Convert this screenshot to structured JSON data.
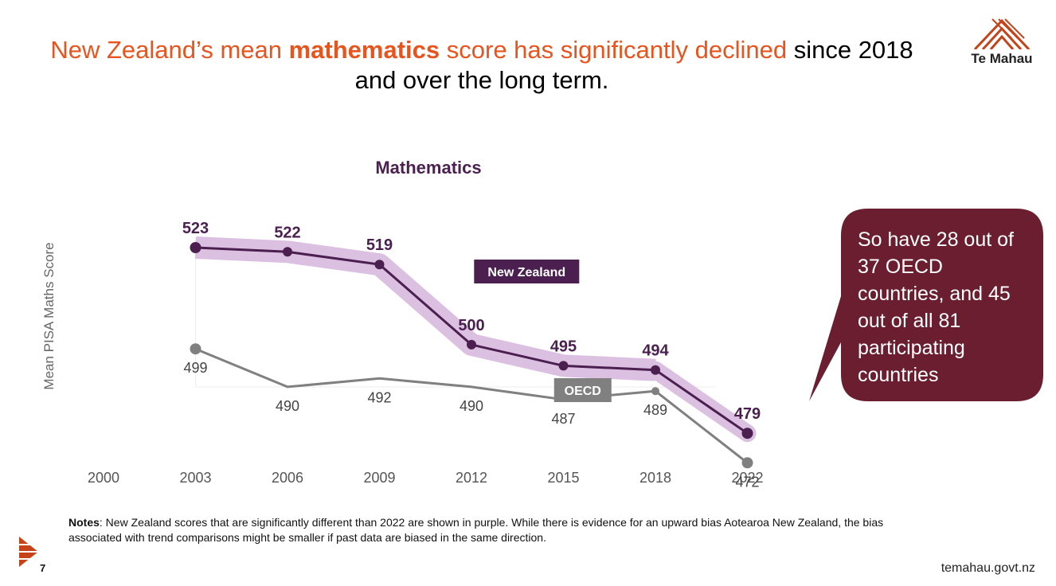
{
  "slide": {
    "title_parts": [
      {
        "text": "New Zealand’s mean ",
        "style": "accent"
      },
      {
        "text": "mathematics",
        "style": "accent-bold"
      },
      {
        "text": " score has significantly declined",
        "style": "accent"
      },
      {
        "text": " since 2018 and over the long term.",
        "style": "plain"
      }
    ],
    "logo_text": "Te Mahau",
    "callout": "So have 28 out of 37 OECD countries, and 45 out of all 81 participating countries",
    "notes_label": "Notes",
    "notes_text": ": New Zealand scores that are significantly different than 2022 are shown in purple. While there is evidence for an upward bias Aotearoa New Zealand, the bias associated with trend comparisons might be smaller if past data are biased in the same direction.",
    "page_number": "7",
    "url": "temahau.govt.nz"
  },
  "colors": {
    "title_accent": "#e8541e",
    "nz_series": "#4b1f4f",
    "nz_band": "#dcc0e1",
    "oecd_series": "#808080",
    "callout_bg": "#6b1e2f",
    "logo": "#c6431a"
  },
  "chart_data": {
    "type": "line",
    "title": "Mathematics",
    "ylabel": "Mean PISA Maths Score",
    "xlabel": "",
    "categories": [
      "2000",
      "2003",
      "2006",
      "2009",
      "2012",
      "2015",
      "2018",
      "2022"
    ],
    "series": [
      {
        "name": "New Zealand",
        "values": [
          null,
          523,
          522,
          519,
          500,
          495,
          494,
          479
        ],
        "labels_bold": true
      },
      {
        "name": "OECD",
        "values": [
          null,
          499,
          490,
          492,
          490,
          487,
          489,
          472
        ],
        "labels_bold": false
      }
    ],
    "ylim": [
      460,
      535
    ],
    "grid": false,
    "legend": "inline labels"
  }
}
